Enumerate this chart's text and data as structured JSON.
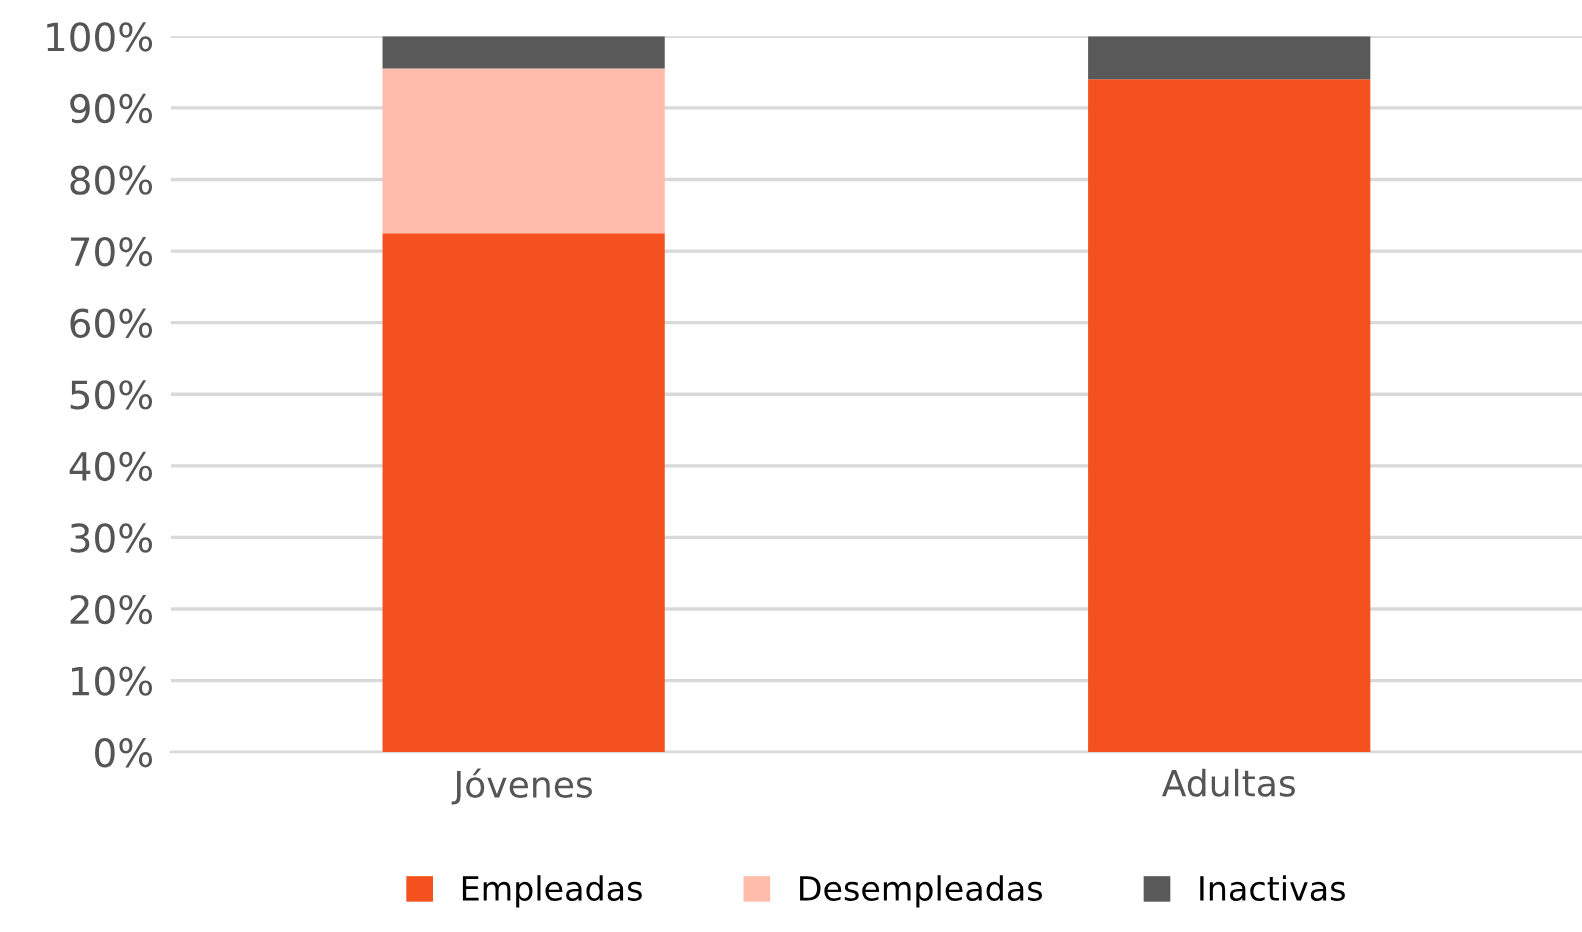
{
  "chart_data": {
    "type": "bar",
    "stacked": true,
    "categories": [
      "Jóvenes",
      "Adultas"
    ],
    "series": [
      {
        "name": "Empleadas",
        "color": "#f4511e",
        "values": [
          72.5,
          94
        ]
      },
      {
        "name": "Desempleadas",
        "color": "#ffbcaa",
        "values": [
          23,
          0
        ]
      },
      {
        "name": "Inactivas",
        "color": "#595959",
        "values": [
          4.5,
          6
        ]
      }
    ],
    "ylim": [
      0,
      100
    ],
    "yticks": [
      {
        "value": 0,
        "label": "0%"
      },
      {
        "value": 10,
        "label": "10%"
      },
      {
        "value": 20,
        "label": "20%"
      },
      {
        "value": 30,
        "label": "30%"
      },
      {
        "value": 40,
        "label": "40%"
      },
      {
        "value": 50,
        "label": "50%"
      },
      {
        "value": 60,
        "label": "60%"
      },
      {
        "value": 70,
        "label": "70%"
      },
      {
        "value": 80,
        "label": "80%"
      },
      {
        "value": 90,
        "label": "90%"
      },
      {
        "value": 100,
        "label": "100%"
      }
    ],
    "grid": "y",
    "legend": "bottom"
  }
}
